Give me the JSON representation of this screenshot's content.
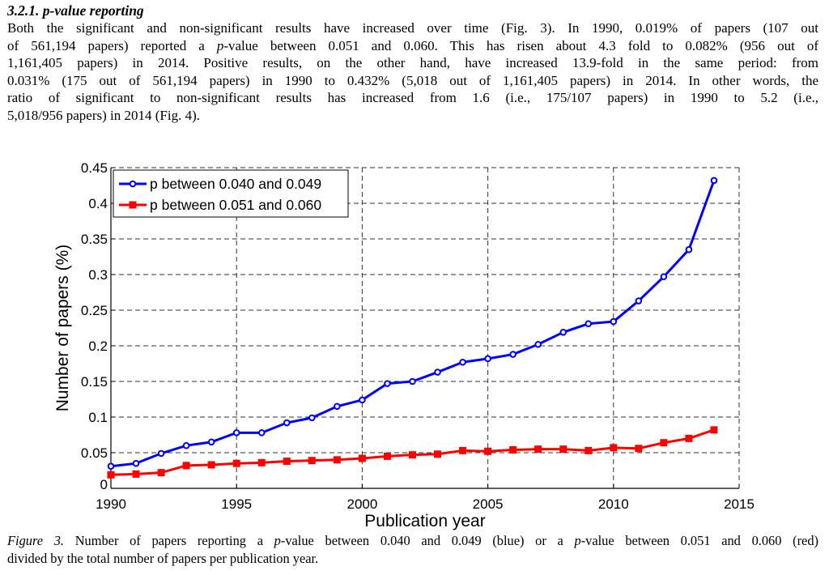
{
  "section": {
    "heading": "3.2.1. p-value reporting",
    "paragraph_lines": [
      [
        {
          "t": "Both the significant and non-significant results have increased over time (Fig. 3). In 1990, 0.019% of papers (107 out"
        }
      ],
      [
        {
          "t": "of 561,194 papers) reported a "
        },
        {
          "t": "p",
          "i": true
        },
        {
          "t": "-value between 0.051 and 0.060. This has risen about 4.3 fold to 0.082% (956 out of"
        }
      ],
      [
        {
          "t": "1,161,405 papers) in 2014. Positive results, on the other hand, have increased 13.9-fold in the same period: from"
        }
      ],
      [
        {
          "t": "0.031% (175 out of 561,194 papers) in 1990 to 0.432% (5,018 out of 1,161,405 papers) in 2014. In other words, the"
        }
      ],
      [
        {
          "t": "ratio of significant to non-significant results has increased from 1.6 (i.e., 175/107 papers) in 1990 to 5.2 (i.e.,"
        }
      ],
      [
        {
          "t": "5,018/956 papers) in 2014 (Fig. 4)."
        }
      ]
    ]
  },
  "caption_lines": [
    [
      {
        "t": "Figure 3.",
        "i": true
      },
      {
        "t": " Number of papers reporting a "
      },
      {
        "t": "p",
        "i": true
      },
      {
        "t": "-value between 0.040 and 0.049 (blue) or a "
      },
      {
        "t": "p",
        "i": true
      },
      {
        "t": "-value between 0.051 and 0.060 (red)"
      }
    ],
    [
      {
        "t": "divided by the total number of papers per publication year."
      }
    ]
  ],
  "chart_data": {
    "type": "line",
    "xlabel": "Publication year",
    "ylabel": "Number of papers (%)",
    "xlim": [
      1990,
      2015
    ],
    "ylim": [
      0,
      0.45
    ],
    "x_ticks": [
      "1990",
      "1995",
      "2000",
      "2005",
      "2010",
      "2015"
    ],
    "y_ticks": [
      "0",
      "0.05",
      "0.1",
      "0.15",
      "0.2",
      "0.25",
      "0.3",
      "0.35",
      "0.4",
      "0.45"
    ],
    "grid": true,
    "legend_position": "top-left",
    "x": [
      1990,
      1991,
      1992,
      1993,
      1994,
      1995,
      1996,
      1997,
      1998,
      1999,
      2000,
      2001,
      2002,
      2003,
      2004,
      2005,
      2006,
      2007,
      2008,
      2009,
      2010,
      2011,
      2012,
      2013,
      2014
    ],
    "series": [
      {
        "name": "p between 0.040 and 0.049",
        "color": "#0000ff",
        "marker": "circle",
        "values": [
          0.031,
          0.035,
          0.049,
          0.06,
          0.065,
          0.078,
          0.078,
          0.092,
          0.099,
          0.115,
          0.124,
          0.147,
          0.15,
          0.163,
          0.177,
          0.182,
          0.188,
          0.202,
          0.219,
          0.231,
          0.234,
          0.263,
          0.297,
          0.335,
          0.432
        ]
      },
      {
        "name": "p between 0.051 and 0.060",
        "color": "#ff0000",
        "marker": "square",
        "values": [
          0.019,
          0.02,
          0.022,
          0.032,
          0.033,
          0.035,
          0.036,
          0.038,
          0.039,
          0.04,
          0.042,
          0.045,
          0.047,
          0.048,
          0.053,
          0.052,
          0.054,
          0.055,
          0.055,
          0.053,
          0.057,
          0.056,
          0.064,
          0.07,
          0.082
        ]
      }
    ]
  }
}
